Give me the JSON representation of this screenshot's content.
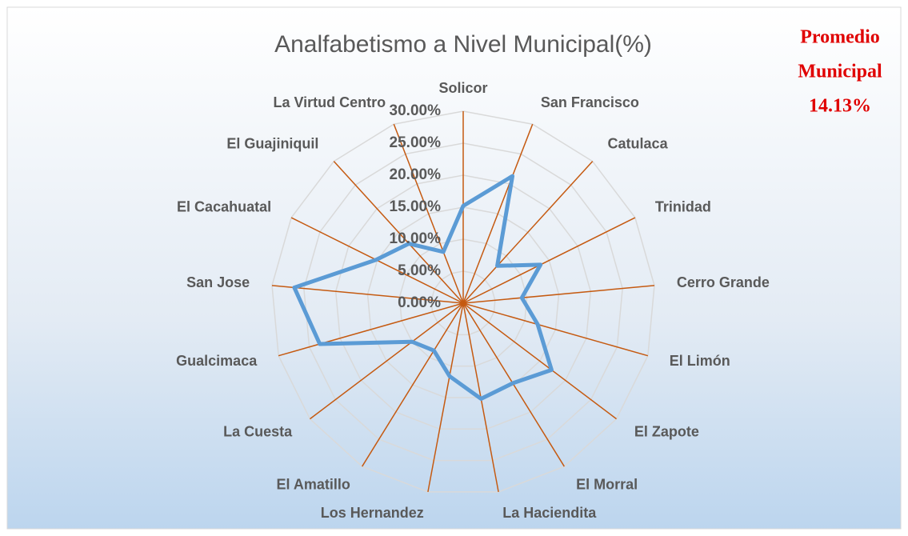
{
  "chart_data": {
    "type": "radar",
    "title": "Analfabetismo a Nivel Municipal(%)",
    "categories": [
      "Solicor",
      "San Francisco",
      "Catulaca",
      "Trinidad",
      "Cerro Grande",
      "El Limón",
      "El Zapote",
      "El Morral",
      "La Haciendita",
      "Los Hernandez",
      "El Amatillo",
      "La Cuesta",
      "Gualcimaca",
      "San Jose",
      "El Cacahuatal",
      "El Guajiniquil",
      "La Virtud Centro"
    ],
    "series": [
      {
        "name": "Analfabetismo",
        "color": "#5b9bd5",
        "values": [
          15.2,
          21.3,
          7.9,
          13.5,
          9.2,
          12.1,
          17.3,
          14.7,
          15.2,
          11.6,
          8.7,
          10.0,
          23.3,
          26.5,
          15.2,
          12.6,
          8.6
        ]
      }
    ],
    "ylim": [
      0,
      30
    ],
    "yticks": [
      {
        "value": 0,
        "label": "0.00%"
      },
      {
        "value": 5,
        "label": "5.00%"
      },
      {
        "value": 10,
        "label": "10.00%"
      },
      {
        "value": 15,
        "label": "15.00%"
      },
      {
        "value": 20,
        "label": "20.00%"
      },
      {
        "value": 25,
        "label": "25.00%"
      },
      {
        "value": 30,
        "label": "30.00%"
      }
    ],
    "axis_color": "#c55a11",
    "grid_color": "#d9d9d9",
    "grid": true,
    "annotation": [
      "Promedio",
      "Municipal",
      "14.13%"
    ]
  }
}
